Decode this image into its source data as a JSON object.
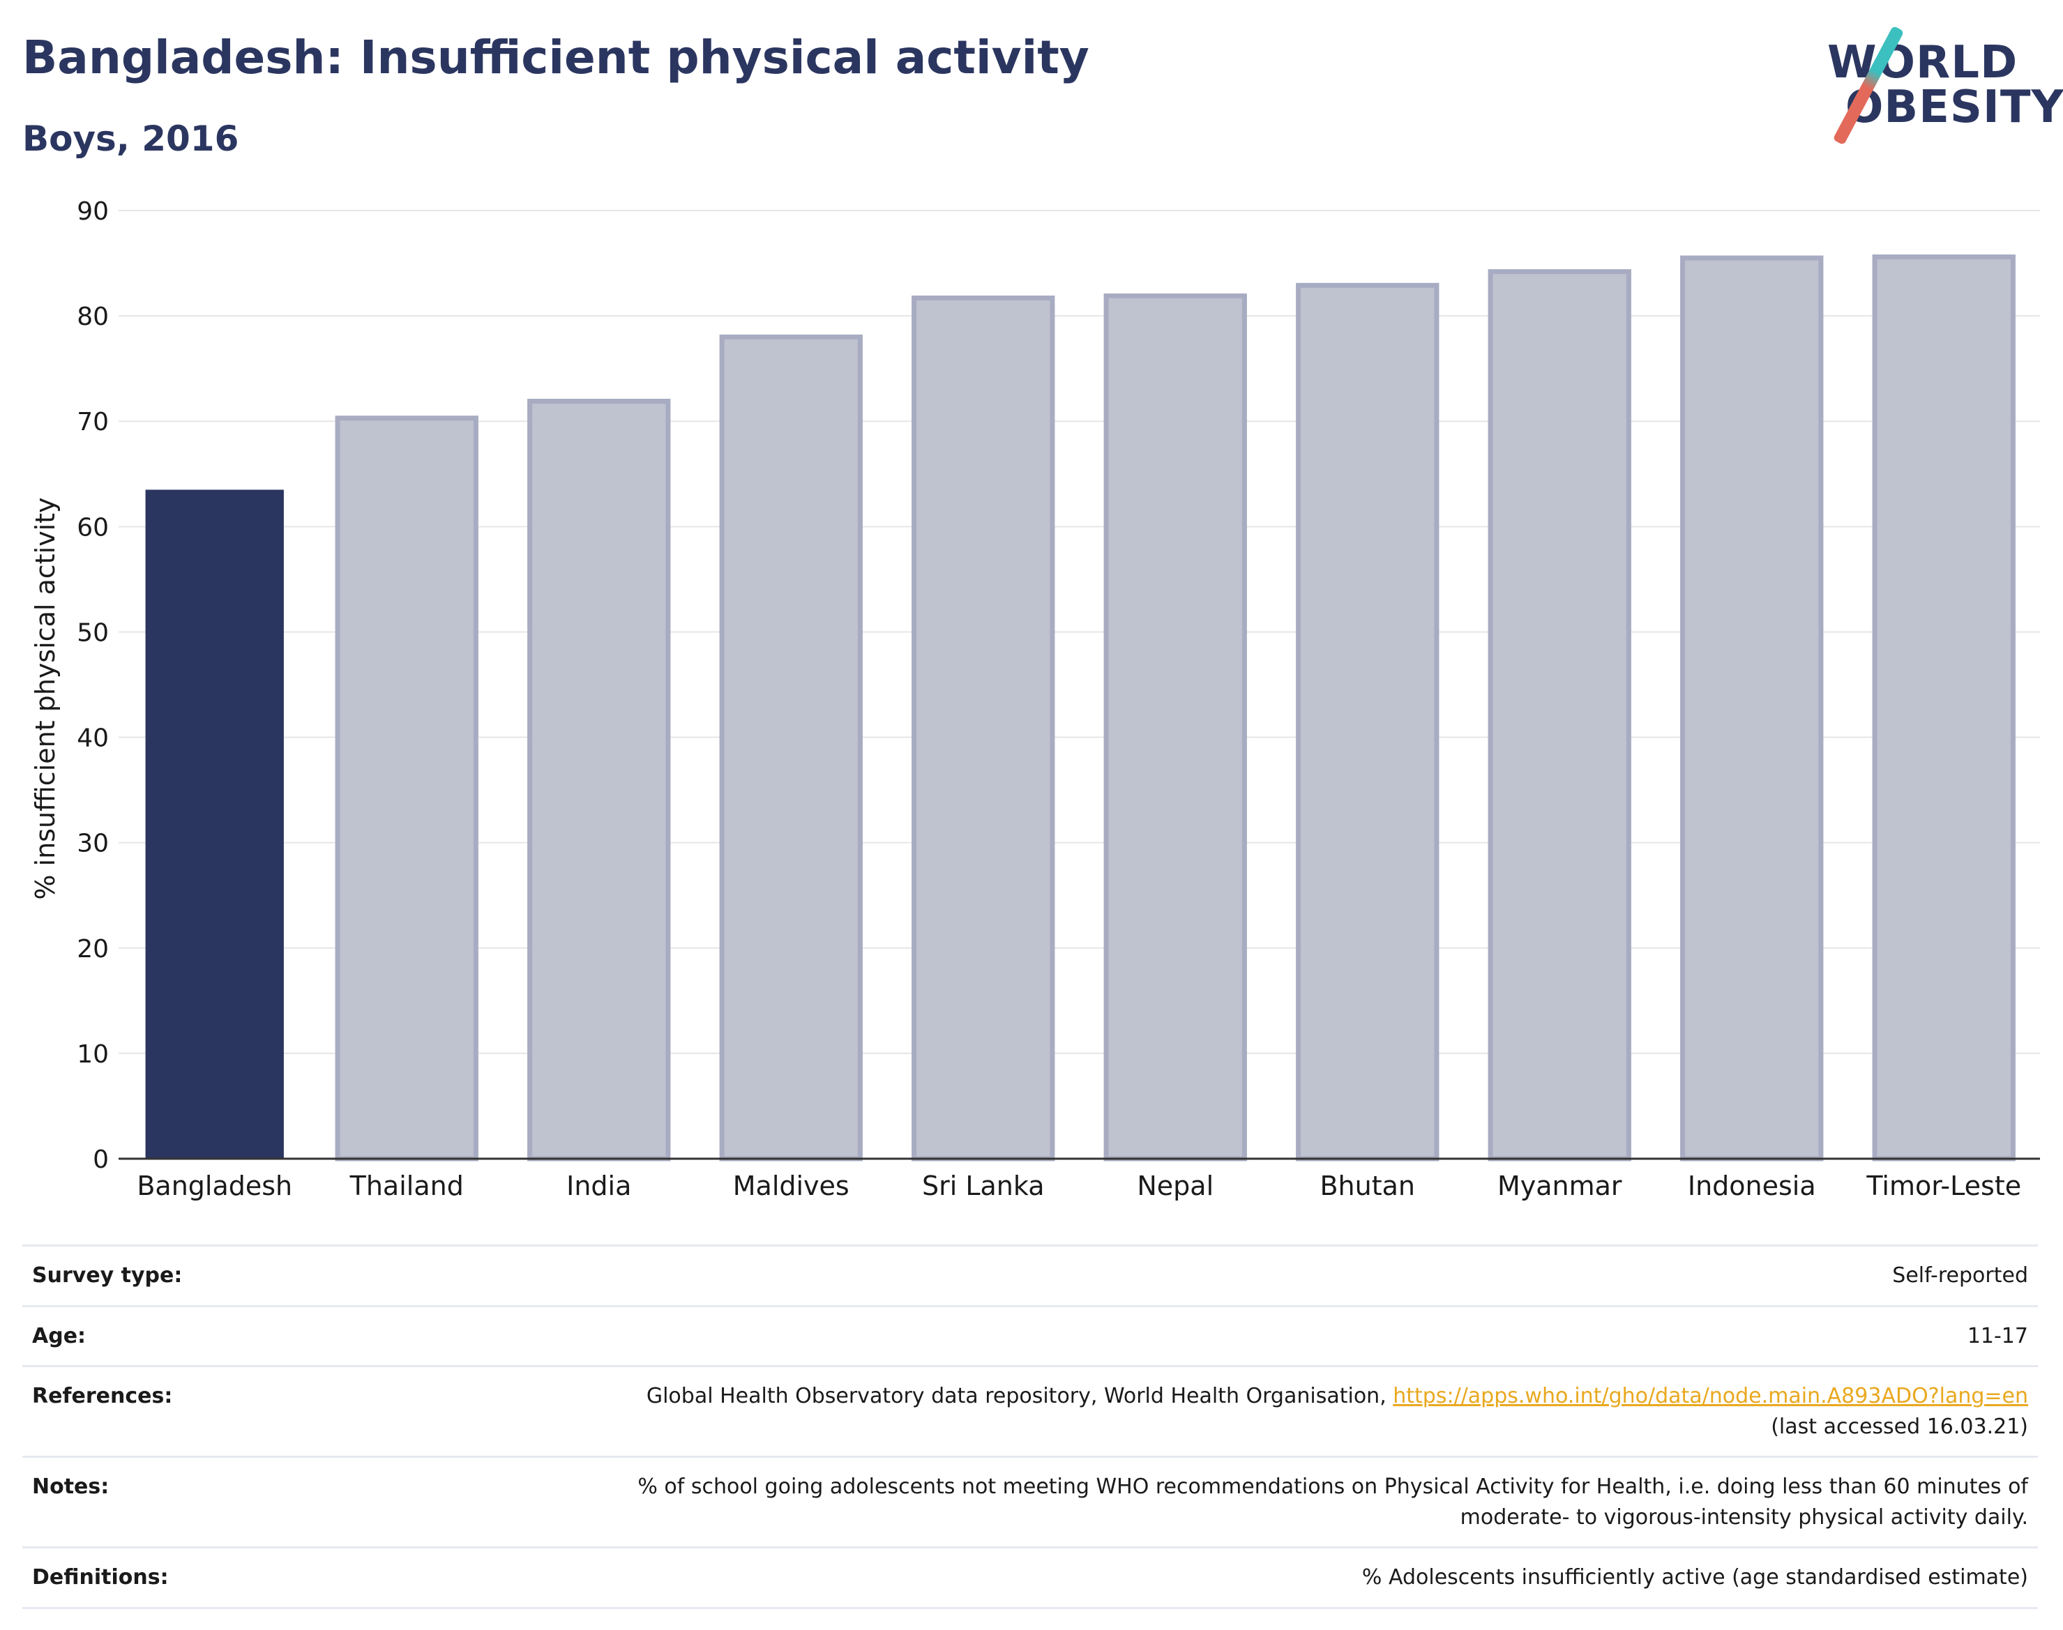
{
  "header": {
    "title": "Bangladesh: Insufficient physical activity",
    "subtitle": "Boys, 2016"
  },
  "logo": {
    "line1": "WORLD",
    "line2": "OBESITY"
  },
  "colors": {
    "highlight": "#2b3660",
    "others_fill": "#bfc2cf",
    "others_stroke": "#a8acc2",
    "grid": "#e6e6e6",
    "link": "#e9a81e"
  },
  "chart_data": {
    "type": "bar",
    "categories": [
      "Bangladesh",
      "Thailand",
      "India",
      "Maldives",
      "Sri Lanka",
      "Nepal",
      "Bhutan",
      "Myanmar",
      "Indonesia",
      "Timor-Leste"
    ],
    "values": [
      63.5,
      70.3,
      71.9,
      78.0,
      81.7,
      81.9,
      82.9,
      84.2,
      85.5,
      85.6
    ],
    "highlight_category": "Bangladesh",
    "ylabel": "% insufficient physical activity",
    "xlabel": "",
    "ylim": [
      0,
      90
    ],
    "yticks": [
      0,
      10,
      20,
      30,
      40,
      50,
      60,
      70,
      80,
      90
    ],
    "grid": true
  },
  "info": {
    "survey_type_label": "Survey type:",
    "survey_type_value": "Self-reported",
    "age_label": "Age:",
    "age_value": "11-17",
    "references_label": "References:",
    "references_text": "Global Health Observatory data repository, World Health Organisation, ",
    "references_link": "https://apps.who.int/gho/data/node.main.A893ADO?lang=en",
    "references_accessed": "(last accessed 16.03.21)",
    "notes_label": "Notes:",
    "notes_line1": "% of school going adolescents not meeting WHO recommendations on Physical Activity for Health, i.e. doing less than 60 minutes of",
    "notes_line2": "moderate- to vigorous-intensity physical activity daily.",
    "definitions_label": "Definitions:",
    "definitions_value": "% Adolescents insufficiently active (age standardised estimate)"
  }
}
